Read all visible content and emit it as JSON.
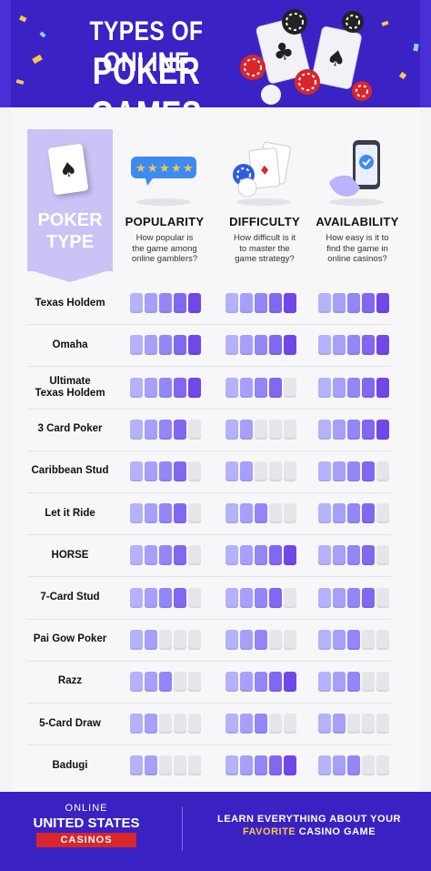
{
  "header": {
    "title_top": "TYPES OF ONLINE",
    "title_bottom": "POKER GAMES"
  },
  "type_column": {
    "label_line1": "POKER",
    "label_line2": "TYPE"
  },
  "columns": [
    {
      "key": "popularity",
      "title": "POPULARITY",
      "subtitle_lines": [
        "How popular is",
        "the game among",
        "online gamblers?"
      ]
    },
    {
      "key": "difficulty",
      "title": "DIFFICULTY",
      "subtitle_lines": [
        "How difficult is it",
        "to master the",
        "game strategy?"
      ]
    },
    {
      "key": "availability",
      "title": "AVAILABILITY",
      "subtitle_lines": [
        "How easy is it to",
        "find the game in",
        "online casinos?"
      ]
    }
  ],
  "max_rating": 5,
  "games": [
    {
      "name_lines": [
        "Texas Holdem"
      ],
      "popularity": 5,
      "difficulty": 5,
      "availability": 5
    },
    {
      "name_lines": [
        "Omaha"
      ],
      "popularity": 5,
      "difficulty": 5,
      "availability": 5
    },
    {
      "name_lines": [
        "Ultimate",
        "Texas Holdem"
      ],
      "popularity": 5,
      "difficulty": 4,
      "availability": 5
    },
    {
      "name_lines": [
        "3 Card Poker"
      ],
      "popularity": 4,
      "difficulty": 2,
      "availability": 5
    },
    {
      "name_lines": [
        "Caribbean Stud"
      ],
      "popularity": 4,
      "difficulty": 2,
      "availability": 4
    },
    {
      "name_lines": [
        "Let it Ride"
      ],
      "popularity": 4,
      "difficulty": 3,
      "availability": 4
    },
    {
      "name_lines": [
        "HORSE"
      ],
      "popularity": 4,
      "difficulty": 5,
      "availability": 4
    },
    {
      "name_lines": [
        "7-Card Stud"
      ],
      "popularity": 4,
      "difficulty": 4,
      "availability": 4
    },
    {
      "name_lines": [
        "Pai Gow Poker"
      ],
      "popularity": 2,
      "difficulty": 3,
      "availability": 3
    },
    {
      "name_lines": [
        "Razz"
      ],
      "popularity": 3,
      "difficulty": 5,
      "availability": 3
    },
    {
      "name_lines": [
        "5-Card Draw"
      ],
      "popularity": 2,
      "difficulty": 3,
      "availability": 2
    },
    {
      "name_lines": [
        "Badugi"
      ],
      "popularity": 2,
      "difficulty": 5,
      "availability": 3
    }
  ],
  "colors": {
    "level_1": "#b4b2fb",
    "level_2": "#a6a0fa",
    "level_3": "#9386f6",
    "level_4": "#8267f1",
    "level_5": "#7247e8",
    "off": "#e5e5ea",
    "brand_blue": "#3b22c4"
  },
  "icons": {
    "type": "playing-card-icon",
    "popularity": "star-rating-icon",
    "difficulty": "cards-and-chips-icon",
    "availability": "phone-check-icon"
  },
  "footer": {
    "logo_line1": "ONLINE",
    "logo_line2": "UNITED STATES",
    "logo_line3": "CASINOS",
    "cta_line1": "LEARN EVERYTHING ABOUT YOUR",
    "cta_line2_accent": "FAVORITE",
    "cta_line2_rest": " CASINO GAME"
  }
}
